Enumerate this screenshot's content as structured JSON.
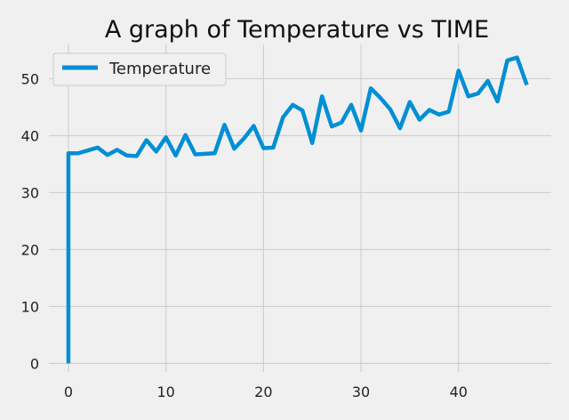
{
  "chart_data": {
    "type": "line",
    "title": "A graph of Temperature vs TIME",
    "xlabel": "",
    "ylabel": "",
    "xlim": [
      -2,
      49.5
    ],
    "ylim": [
      -1.5,
      56
    ],
    "xticks": [
      0,
      10,
      20,
      30,
      40
    ],
    "yticks": [
      0,
      10,
      20,
      30,
      40,
      50
    ],
    "grid": true,
    "legend": "top-left",
    "series": [
      {
        "name": "Temperature",
        "color": "#008fd5",
        "x": [
          0,
          0,
          1,
          2,
          3,
          4,
          5,
          6,
          7,
          8,
          9,
          10,
          11,
          12,
          13,
          14,
          15,
          16,
          17,
          18,
          19,
          20,
          21,
          22,
          23,
          24,
          25,
          26,
          27,
          28,
          29,
          30,
          31,
          32,
          33,
          34,
          35,
          36,
          37,
          38,
          39,
          40,
          41,
          42,
          43,
          44,
          45,
          46,
          47
        ],
        "y": [
          0,
          36.9,
          36.9,
          37.4,
          37.9,
          36.6,
          37.5,
          36.5,
          36.4,
          39.2,
          37.2,
          39.7,
          36.5,
          40.1,
          36.7,
          36.8,
          36.9,
          41.9,
          37.7,
          39.5,
          41.7,
          37.8,
          37.9,
          43.2,
          45.4,
          44.4,
          38.7,
          46.9,
          41.6,
          42.3,
          45.4,
          40.9,
          48.3,
          46.6,
          44.6,
          41.3,
          45.9,
          42.8,
          44.5,
          43.7,
          44.2,
          51.4,
          46.9,
          47.4,
          49.6,
          46.0,
          53.2,
          53.7,
          48.9
        ]
      }
    ]
  }
}
